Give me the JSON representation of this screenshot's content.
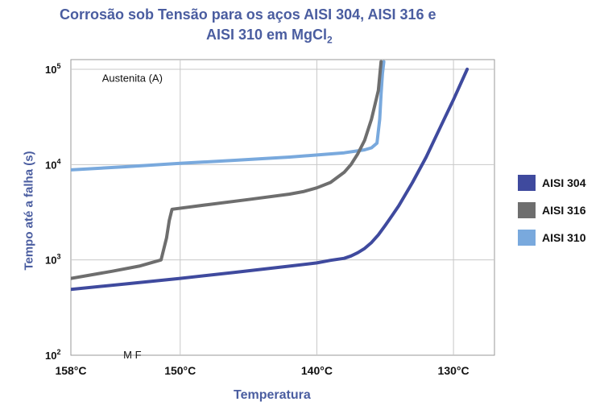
{
  "chart_data": {
    "type": "line",
    "title_line1": "Corrosão sob Tensão para os aços AISI 304, AISI 316 e",
    "title_line2": "AISI 310 em MgCl",
    "title_subscript": "2",
    "xlabel": "Temperatura",
    "ylabel": "Tempo até a falha (s)",
    "x_ticks": [
      158,
      150,
      140,
      130
    ],
    "x_tick_labels": [
      "158°C",
      "150°C",
      "140°C",
      "130°C"
    ],
    "xlim": [
      158,
      127
    ],
    "y_scale": "log",
    "ylim": [
      100,
      120000
    ],
    "y_ticks": [
      100,
      1000,
      10000,
      100000
    ],
    "y_tick_bases": [
      "10",
      "10",
      "10",
      "10"
    ],
    "y_tick_exps": [
      "2",
      "3",
      "4",
      "5"
    ],
    "grid": true,
    "legend_position": "right",
    "annotations": [
      {
        "text": "Austenita (A)",
        "x": 153.5,
        "y": 80000
      },
      {
        "text": "M F",
        "x": 153.5,
        "y": 100
      }
    ],
    "series": [
      {
        "name": "AISI 304",
        "color": "#3f4a9e",
        "x": [
          158,
          154,
          150,
          146,
          142,
          140,
          139,
          138,
          137.5,
          137,
          136.5,
          136,
          135.5,
          135,
          134.5,
          134,
          133,
          132,
          131,
          130,
          129
        ],
        "y": [
          490,
          560,
          640,
          740,
          860,
          930,
          990,
          1040,
          1100,
          1190,
          1320,
          1520,
          1830,
          2300,
          2900,
          3700,
          6500,
          12000,
          24000,
          48000,
          100000
        ]
      },
      {
        "name": "AISI 316",
        "color": "#6e6e6e",
        "x": [
          158,
          155,
          153,
          151.4,
          151,
          150.8,
          150.6,
          148,
          145,
          142,
          141,
          140,
          139,
          138,
          137.5,
          137,
          136.5,
          136,
          135.5,
          135.3
        ],
        "y": [
          640,
          760,
          860,
          1000,
          1700,
          2600,
          3400,
          3800,
          4300,
          4900,
          5200,
          5700,
          6500,
          8300,
          10000,
          13000,
          18000,
          30000,
          60000,
          120000
        ]
      },
      {
        "name": "AISI 310",
        "color": "#79a9dd",
        "x": [
          158,
          154,
          150,
          146,
          142,
          138,
          136.5,
          136,
          135.6,
          135.4,
          135.3,
          135.2,
          135.1
        ],
        "y": [
          8800,
          9500,
          10300,
          11100,
          12000,
          13300,
          14300,
          15000,
          16800,
          30000,
          55000,
          90000,
          120000
        ]
      }
    ]
  }
}
